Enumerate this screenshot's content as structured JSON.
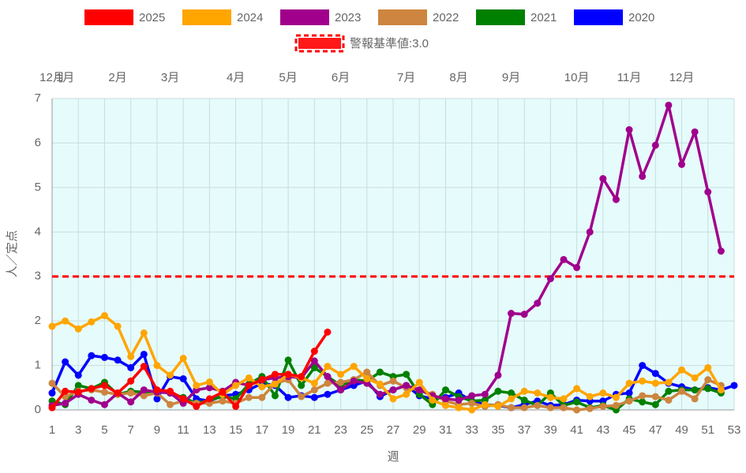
{
  "chart_data": {
    "type": "line",
    "x_label": "週",
    "y_label": "人／定点",
    "x": [
      1,
      2,
      3,
      4,
      5,
      6,
      7,
      8,
      9,
      10,
      11,
      12,
      13,
      14,
      15,
      16,
      17,
      18,
      19,
      20,
      21,
      22,
      23,
      24,
      25,
      26,
      27,
      28,
      29,
      30,
      31,
      32,
      33,
      34,
      35,
      36,
      37,
      38,
      39,
      40,
      41,
      42,
      43,
      44,
      45,
      46,
      47,
      48,
      49,
      50,
      51,
      52,
      53
    ],
    "xlim": [
      1,
      53
    ],
    "xticks": [
      1,
      3,
      5,
      7,
      9,
      11,
      13,
      15,
      17,
      19,
      21,
      23,
      25,
      27,
      29,
      31,
      33,
      35,
      37,
      39,
      41,
      43,
      45,
      47,
      49,
      51,
      53
    ],
    "x2ticks": [
      {
        "value": 1,
        "label": "12月"
      },
      {
        "value": 2,
        "label": "1月"
      },
      {
        "value": 6,
        "label": "2月"
      },
      {
        "value": 10,
        "label": "3月"
      },
      {
        "value": 15,
        "label": "4月"
      },
      {
        "value": 19,
        "label": "5月"
      },
      {
        "value": 23,
        "label": "6月"
      },
      {
        "value": 28,
        "label": "7月"
      },
      {
        "value": 32,
        "label": "8月"
      },
      {
        "value": 36,
        "label": "9月"
      },
      {
        "value": 41,
        "label": "10月"
      },
      {
        "value": 45,
        "label": "11月"
      },
      {
        "value": 49,
        "label": "12月"
      }
    ],
    "ylim": [
      0,
      7
    ],
    "yticks": [
      0,
      1,
      2,
      3,
      4,
      5,
      6,
      7
    ],
    "grid": true,
    "threshold": {
      "name": "警報基準値:3.0",
      "value": 3,
      "color": "#ff0000"
    },
    "series": [
      {
        "name": "2025",
        "color": "#ff0000",
        "values": [
          0.05,
          0.42,
          0.4,
          0.48,
          0.55,
          0.38,
          0.65,
          0.98,
          0.45,
          0.42,
          0.25,
          0.08,
          0.25,
          0.4,
          0.08,
          0.55,
          0.68,
          0.8,
          0.8,
          0.75,
          1.32,
          1.75,
          null,
          null,
          null,
          null,
          null,
          null,
          null,
          null,
          null,
          null,
          null,
          null,
          null,
          null,
          null,
          null,
          null,
          null,
          null,
          null,
          null,
          null,
          null,
          null,
          null,
          null,
          null,
          null,
          null,
          null,
          null
        ]
      },
      {
        "name": "2024",
        "color": "#ffa500",
        "values": [
          1.88,
          2.0,
          1.82,
          1.98,
          2.12,
          1.88,
          1.2,
          1.73,
          1.0,
          0.78,
          1.16,
          0.55,
          0.63,
          0.35,
          0.55,
          0.72,
          0.52,
          0.58,
          0.8,
          0.72,
          0.6,
          0.98,
          0.8,
          0.98,
          0.7,
          0.58,
          0.25,
          0.35,
          0.62,
          0.22,
          0.1,
          0.05,
          0.0,
          0.12,
          0.08,
          0.25,
          0.42,
          0.38,
          0.28,
          0.25,
          0.48,
          0.3,
          0.38,
          0.28,
          0.6,
          0.65,
          0.6,
          0.62,
          0.9,
          0.72,
          0.95,
          0.45,
          null
        ]
      },
      {
        "name": "2023",
        "color": "#a0008c",
        "values": [
          0.1,
          0.15,
          0.35,
          0.22,
          0.12,
          0.38,
          0.18,
          0.45,
          0.4,
          0.38,
          0.15,
          0.45,
          0.5,
          0.42,
          0.62,
          0.55,
          0.68,
          0.72,
          0.75,
          0.72,
          1.1,
          0.75,
          0.45,
          0.65,
          0.6,
          0.35,
          0.45,
          0.55,
          0.45,
          0.32,
          0.25,
          0.22,
          0.32,
          0.35,
          0.78,
          2.17,
          2.15,
          2.4,
          2.95,
          3.38,
          3.2,
          4.0,
          5.2,
          4.73,
          6.3,
          5.25,
          5.95,
          6.85,
          5.52,
          6.25,
          4.9,
          3.57,
          null
        ]
      },
      {
        "name": "2022",
        "color": "#cd853f",
        "values": [
          0.6,
          0.3,
          0.42,
          0.45,
          0.4,
          0.35,
          0.38,
          0.32,
          0.38,
          0.12,
          0.2,
          0.15,
          0.15,
          0.2,
          0.15,
          0.28,
          0.28,
          0.6,
          0.68,
          0.3,
          0.45,
          0.6,
          0.62,
          0.68,
          0.85,
          0.55,
          0.65,
          0.5,
          0.45,
          0.35,
          0.2,
          0.12,
          0.15,
          0.08,
          0.12,
          0.05,
          0.05,
          0.1,
          0.05,
          0.05,
          0.0,
          0.03,
          0.08,
          0.1,
          0.2,
          0.32,
          0.3,
          0.22,
          0.42,
          0.25,
          0.68,
          0.55,
          null
        ]
      },
      {
        "name": "2021",
        "color": "#008000",
        "values": [
          0.2,
          0.12,
          0.55,
          0.48,
          0.62,
          0.35,
          0.42,
          0.4,
          0.42,
          0.38,
          0.28,
          0.15,
          0.22,
          0.3,
          0.25,
          0.58,
          0.75,
          0.32,
          1.12,
          0.55,
          0.95,
          0.75,
          0.55,
          0.68,
          0.65,
          0.85,
          0.75,
          0.8,
          0.35,
          0.12,
          0.45,
          0.3,
          0.2,
          0.22,
          0.42,
          0.38,
          0.22,
          0.1,
          0.38,
          0.1,
          0.18,
          0.05,
          0.1,
          0.0,
          0.25,
          0.18,
          0.12,
          0.42,
          0.45,
          0.45,
          0.48,
          0.38,
          null
        ]
      },
      {
        "name": "2020",
        "color": "#0000ff",
        "values": [
          0.38,
          1.08,
          0.78,
          1.22,
          1.18,
          1.12,
          0.95,
          1.25,
          0.25,
          0.75,
          0.7,
          0.25,
          0.2,
          0.32,
          0.35,
          0.45,
          0.6,
          0.55,
          0.28,
          0.32,
          0.28,
          0.35,
          0.45,
          0.55,
          0.65,
          0.3,
          0.45,
          0.55,
          0.32,
          0.25,
          0.28,
          0.38,
          0.2,
          0.12,
          0.1,
          0.05,
          0.12,
          0.2,
          0.1,
          0.12,
          0.22,
          0.2,
          0.2,
          0.35,
          0.38,
          1.0,
          0.82,
          0.6,
          0.52,
          0.45,
          0.5,
          0.45,
          0.55
        ]
      }
    ]
  }
}
